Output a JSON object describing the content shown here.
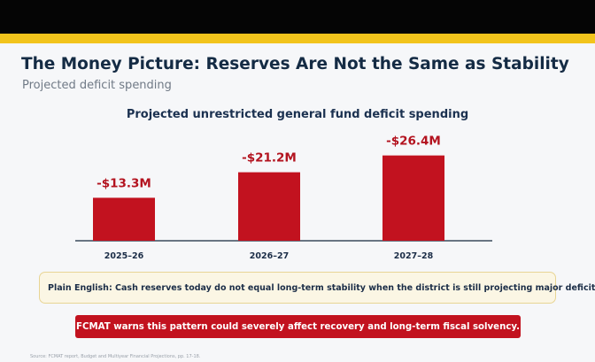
{
  "slide": {
    "title": "The Money Picture: Reserves Are Not the Same as Stability",
    "subtitle": "Projected deficit spending",
    "plain_english": "Plain English: Cash reserves today do not equal long-term stability when the district is still projecting major deficits.",
    "warning": "FCMAT warns this pattern could severely affect recovery and long-term fiscal solvency.",
    "source": "Source: FCMAT report, Budget and Multiyear Financial Projections, pp. 17-18."
  },
  "colors": {
    "accent_bar": "#f2c41c",
    "bar_fill": "#c2121f",
    "value_label": "#b3131f",
    "title": "#142b44"
  },
  "chart_data": {
    "type": "bar",
    "title": "Projected unrestricted general fund deficit spending",
    "categories": [
      "2025–26",
      "2026–27",
      "2027–28"
    ],
    "values": [
      13.3,
      21.2,
      26.4
    ],
    "data_labels": [
      "-$13.3M",
      "-$21.2M",
      "-$26.4M"
    ],
    "xlabel": "",
    "ylabel": "",
    "ylim": [
      0,
      30
    ],
    "grid": false,
    "legend": "none"
  }
}
